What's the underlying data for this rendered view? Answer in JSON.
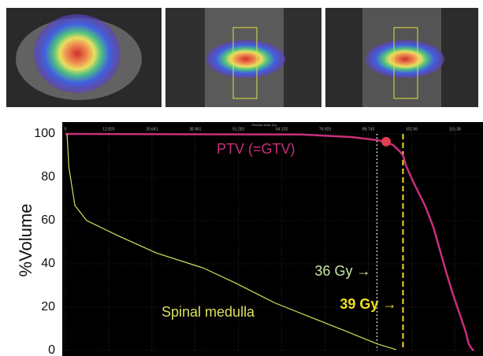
{
  "chart_data": {
    "type": "line",
    "x_label": "Relative dose [%]",
    "y_label": "%Volume",
    "xlim": [
      0,
      123
    ],
    "ylim": [
      0,
      100
    ],
    "xticks": [
      0,
      {
        "value": 12.82,
        "label": "12.820"
      },
      25.641,
      38.461,
      51.282,
      64.102,
      76.923,
      89.743,
      102.56,
      115.38
    ],
    "yticks": [
      0,
      20,
      40,
      60,
      80,
      100
    ],
    "grid": true,
    "series": [
      {
        "name": "PTV (=GTV)",
        "color": "#c8307a",
        "x": [
          0,
          70,
          85,
          93,
          97,
          99,
          100,
          101,
          103,
          106.5,
          109,
          111,
          113,
          115,
          117,
          118.5,
          119.5,
          120.5,
          121
        ],
        "values": [
          100,
          99.7,
          98.5,
          97,
          95,
          92,
          90,
          85,
          78,
          67,
          57,
          46,
          35,
          25,
          16,
          9,
          3,
          0.5,
          0
        ]
      },
      {
        "name": "Spinal medulla",
        "color": "#d8e060",
        "x": [
          0.5,
          1,
          2.8,
          6.3,
          15.6,
          27,
          41,
          50.6,
          62,
          74,
          83,
          92.5,
          98
        ],
        "values": [
          100,
          85,
          67,
          60,
          53,
          45,
          38,
          31,
          22,
          14.5,
          9,
          3,
          0.4
        ]
      }
    ],
    "marker": {
      "x": 95,
      "y": 96.4,
      "color": "#e04050"
    },
    "reference_lines": [
      {
        "x": 92.3,
        "label": "36 Gy →",
        "color": "#ffffff",
        "label_color": "#c8e8a8",
        "style": "dotted"
      },
      {
        "x": 100,
        "label": "39 Gy →",
        "color": "#f0e020",
        "label_color": "#f0e020",
        "style": "dashed"
      }
    ]
  }
}
